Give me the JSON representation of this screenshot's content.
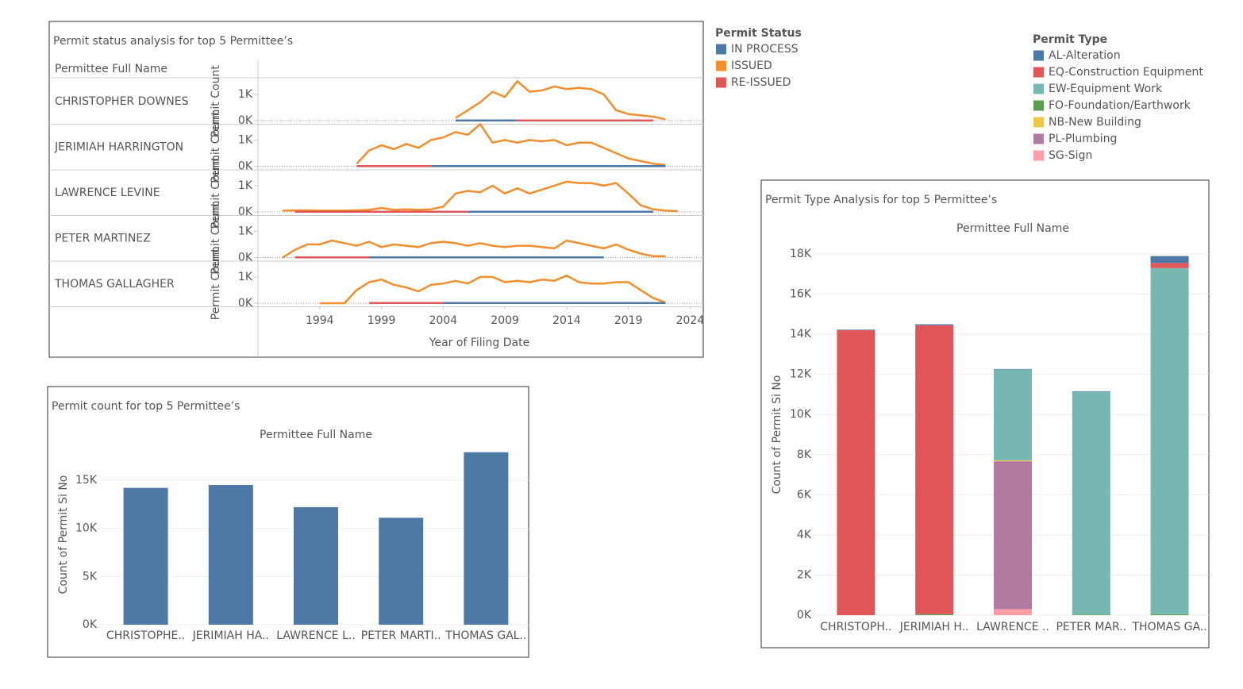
{
  "chart_data": [
    {
      "type": "line",
      "title": "Permit status analysis for top 5 Permittee’s",
      "row_header": "Permittee Full Name",
      "ylabel": "Permit Count",
      "xlabel": "Year of Filing Date",
      "legend_title": "Permit Status",
      "xlim": [
        1989,
        2025
      ],
      "xticks": [
        1994,
        1999,
        2004,
        2009,
        2014,
        2019,
        2024
      ],
      "ylim": [
        0,
        1600
      ],
      "yticks": [
        {
          "value": 0,
          "label": "0K"
        },
        {
          "value": 1000,
          "label": "1K"
        }
      ],
      "series": [
        {
          "name": "IN PROCESS",
          "color": "#4e79a7"
        },
        {
          "name": "ISSUED",
          "color": "#f28e2b"
        },
        {
          "name": "RE-ISSUED",
          "color": "#e15759"
        }
      ],
      "panels": [
        {
          "label": "CHRISTOPHER DOWNES",
          "x": [
            2005,
            2006,
            2007,
            2008,
            2009,
            2010,
            2011,
            2012,
            2013,
            2014,
            2015,
            2016,
            2017,
            2018,
            2019,
            2020,
            2021,
            2022
          ],
          "values": [
            [
              10,
              10,
              10,
              10,
              10,
              10,
              null,
              null,
              null,
              null,
              null,
              null,
              null,
              null,
              null,
              null,
              null,
              null
            ],
            [
              100,
              400,
              700,
              1100,
              900,
              1500,
              1100,
              1150,
              1300,
              1200,
              1250,
              1200,
              1000,
              400,
              250,
              200,
              150,
              50
            ],
            [
              null,
              null,
              null,
              null,
              null,
              10,
              10,
              10,
              10,
              10,
              10,
              10,
              10,
              10,
              10,
              10,
              10,
              null
            ]
          ]
        },
        {
          "label": "JERIMIAH HARRINGTON",
          "x": [
            1997,
            1998,
            1999,
            2000,
            2001,
            2002,
            2003,
            2004,
            2005,
            2006,
            2007,
            2008,
            2009,
            2010,
            2011,
            2012,
            2013,
            2014,
            2015,
            2016,
            2017,
            2018,
            2019,
            2020,
            2021,
            2022
          ],
          "values": [
            [
              null,
              null,
              null,
              null,
              null,
              null,
              10,
              10,
              10,
              10,
              10,
              10,
              10,
              10,
              10,
              10,
              10,
              10,
              10,
              10,
              10,
              10,
              10,
              10,
              10,
              10
            ],
            [
              100,
              600,
              800,
              650,
              850,
              700,
              1000,
              1100,
              1300,
              1200,
              1600,
              900,
              1000,
              900,
              1000,
              950,
              1000,
              800,
              900,
              900,
              700,
              500,
              300,
              200,
              100,
              50
            ],
            [
              10,
              10,
              10,
              10,
              10,
              10,
              10,
              null,
              null,
              null,
              null,
              null,
              null,
              null,
              null,
              null,
              null,
              null,
              null,
              null,
              null,
              null,
              null,
              null,
              null,
              null
            ]
          ]
        },
        {
          "label": "LAWRENCE LEVINE",
          "x": [
            1991,
            1992,
            1993,
            1994,
            1995,
            1996,
            1997,
            1998,
            1999,
            2000,
            2001,
            2002,
            2003,
            2004,
            2005,
            2006,
            2007,
            2008,
            2009,
            2010,
            2011,
            2012,
            2013,
            2014,
            2015,
            2016,
            2017,
            2018,
            2019,
            2020,
            2021,
            2022,
            2023
          ],
          "values": [
            [
              null,
              null,
              null,
              null,
              null,
              null,
              null,
              null,
              null,
              null,
              null,
              null,
              null,
              null,
              null,
              10,
              10,
              10,
              10,
              10,
              10,
              10,
              10,
              10,
              10,
              10,
              10,
              10,
              10,
              10,
              10,
              null,
              null
            ],
            [
              50,
              60,
              60,
              50,
              50,
              50,
              60,
              80,
              150,
              80,
              100,
              80,
              100,
              200,
              700,
              800,
              750,
              1000,
              700,
              900,
              700,
              850,
              1000,
              1150,
              1100,
              1100,
              1000,
              1100,
              700,
              250,
              100,
              50,
              30
            ],
            [
              null,
              10,
              10,
              10,
              10,
              10,
              10,
              10,
              10,
              10,
              10,
              10,
              10,
              10,
              10,
              10,
              null,
              null,
              null,
              null,
              null,
              null,
              null,
              null,
              null,
              null,
              null,
              null,
              null,
              null,
              null,
              null,
              null
            ]
          ]
        },
        {
          "label": "PETER MARTINEZ",
          "x": [
            1991,
            1992,
            1993,
            1994,
            1995,
            1996,
            1997,
            1998,
            1999,
            2000,
            2001,
            2002,
            2003,
            2004,
            2005,
            2006,
            2007,
            2008,
            2009,
            2010,
            2011,
            2012,
            2013,
            2014,
            2015,
            2016,
            2017,
            2018,
            2019,
            2020,
            2021,
            2022
          ],
          "values": [
            [
              null,
              null,
              null,
              null,
              null,
              null,
              null,
              10,
              10,
              10,
              10,
              10,
              10,
              10,
              10,
              10,
              10,
              10,
              10,
              10,
              10,
              10,
              10,
              10,
              10,
              10,
              10,
              null,
              null,
              null,
              null,
              null
            ],
            [
              0,
              300,
              500,
              500,
              650,
              550,
              450,
              600,
              400,
              500,
              450,
              400,
              550,
              600,
              550,
              450,
              550,
              450,
              400,
              450,
              450,
              400,
              350,
              650,
              550,
              450,
              350,
              500,
              300,
              150,
              50,
              50
            ],
            [
              null,
              10,
              10,
              10,
              10,
              10,
              10,
              10,
              null,
              null,
              null,
              null,
              null,
              null,
              null,
              null,
              null,
              null,
              null,
              null,
              null,
              null,
              null,
              null,
              null,
              null,
              null,
              null,
              null,
              null,
              null,
              null
            ]
          ]
        },
        {
          "label": "THOMAS GALLAGHER",
          "x": [
            1994,
            1995,
            1996,
            1997,
            1998,
            1999,
            2000,
            2001,
            2002,
            2003,
            2004,
            2005,
            2006,
            2007,
            2008,
            2009,
            2010,
            2011,
            2012,
            2013,
            2014,
            2015,
            2016,
            2017,
            2018,
            2019,
            2020,
            2021,
            2022
          ],
          "values": [
            [
              null,
              null,
              null,
              null,
              null,
              null,
              null,
              null,
              null,
              null,
              10,
              10,
              10,
              10,
              10,
              10,
              10,
              10,
              10,
              10,
              10,
              10,
              10,
              10,
              10,
              10,
              10,
              10,
              10
            ],
            [
              0,
              0,
              0,
              500,
              800,
              900,
              700,
              600,
              450,
              700,
              750,
              850,
              750,
              1000,
              1000,
              800,
              850,
              800,
              900,
              850,
              1050,
              800,
              750,
              750,
              800,
              800,
              500,
              200,
              30
            ],
            [
              null,
              null,
              null,
              null,
              10,
              10,
              10,
              10,
              10,
              10,
              10,
              null,
              null,
              null,
              null,
              null,
              null,
              null,
              null,
              null,
              null,
              null,
              null,
              null,
              null,
              null,
              null,
              null,
              null
            ]
          ]
        }
      ]
    },
    {
      "type": "bar",
      "title": "Permit count for top 5 Permittee’s",
      "header": "Permittee Full Name",
      "ylabel": "Count of Permit Si No",
      "categories": [
        "CHRISTOPHE..",
        "JERIMIAH HA..",
        "LAWRENCE L..",
        "PETER MARTI..",
        "THOMAS GAL.."
      ],
      "values": [
        14200,
        14500,
        12200,
        11100,
        17900
      ],
      "color": "#4e79a7",
      "ylim": [
        0,
        18700
      ],
      "yticks": [
        {
          "value": 0,
          "label": "0K"
        },
        {
          "value": 5000,
          "label": "5K"
        },
        {
          "value": 10000,
          "label": "10K"
        },
        {
          "value": 15000,
          "label": "15K"
        }
      ],
      "grid": true
    },
    {
      "type": "bar",
      "stacked": true,
      "title": "Permit Type Analysis for top 5 Permittee’s",
      "header": "Permittee Full Name",
      "ylabel": "Count of Permit Si No",
      "legend_title": "Permit Type",
      "categories": [
        "CHRISTOPH..",
        "JERIMIAH H..",
        "LAWRENCE ..",
        "PETER MAR..",
        "THOMAS GA.."
      ],
      "series": [
        {
          "name": "AL-Alteration",
          "color": "#4e79a7",
          "values": [
            30,
            50,
            20,
            30,
            350
          ]
        },
        {
          "name": "EQ-Construction Equipment",
          "color": "#e15759",
          "values": [
            14200,
            14400,
            0,
            0,
            250
          ]
        },
        {
          "name": "EW-Equipment Work",
          "color": "#76b7b2",
          "values": [
            0,
            0,
            4530,
            11100,
            17250
          ]
        },
        {
          "name": "FO-Foundation/Earthwork",
          "color": "#59a14f",
          "values": [
            0,
            50,
            0,
            30,
            50
          ]
        },
        {
          "name": "NB-New Building",
          "color": "#edc948",
          "values": [
            0,
            0,
            50,
            0,
            0
          ]
        },
        {
          "name": "PL-Plumbing",
          "color": "#b07aa1",
          "values": [
            0,
            0,
            7370,
            0,
            0
          ]
        },
        {
          "name": "SG-Sign",
          "color": "#ff9da7",
          "values": [
            0,
            0,
            300,
            0,
            0
          ]
        }
      ],
      "ylim": [
        0,
        18000
      ],
      "yticks": [
        {
          "value": 0,
          "label": "0K"
        },
        {
          "value": 2000,
          "label": "2K"
        },
        {
          "value": 4000,
          "label": "4K"
        },
        {
          "value": 6000,
          "label": "6K"
        },
        {
          "value": 8000,
          "label": "8K"
        },
        {
          "value": 10000,
          "label": "10K"
        },
        {
          "value": 12000,
          "label": "12K"
        },
        {
          "value": 14000,
          "label": "14K"
        },
        {
          "value": 16000,
          "label": "16K"
        },
        {
          "value": 18000,
          "label": "18K"
        }
      ],
      "grid": true
    }
  ]
}
